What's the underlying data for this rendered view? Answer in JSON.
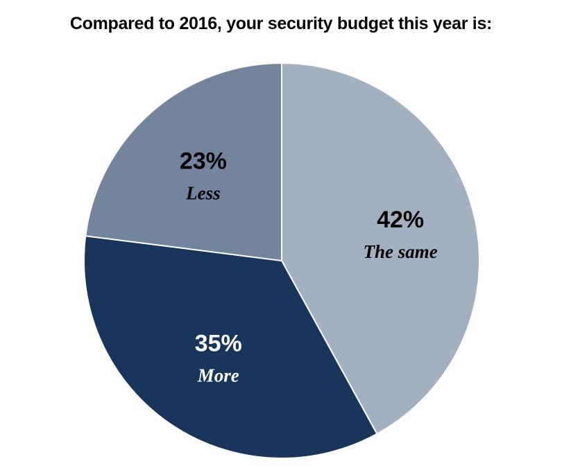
{
  "chart_data": {
    "type": "pie",
    "title": "Compared to 2016, your security budget this year is:",
    "slices": [
      {
        "label": "The same",
        "value": 42,
        "value_label": "42%",
        "color": "#a3b0bf",
        "text_color": "#000000"
      },
      {
        "label": "More",
        "value": 35,
        "value_label": "35%",
        "color": "#19355c",
        "text_color": "#ffffff"
      },
      {
        "label": "Less",
        "value": 23,
        "value_label": "23%",
        "color": "#73859c",
        "text_color": "#000000"
      }
    ],
    "start_angle": "12 o'clock",
    "direction": "clockwise",
    "slice_border_color": "#ffffff"
  }
}
